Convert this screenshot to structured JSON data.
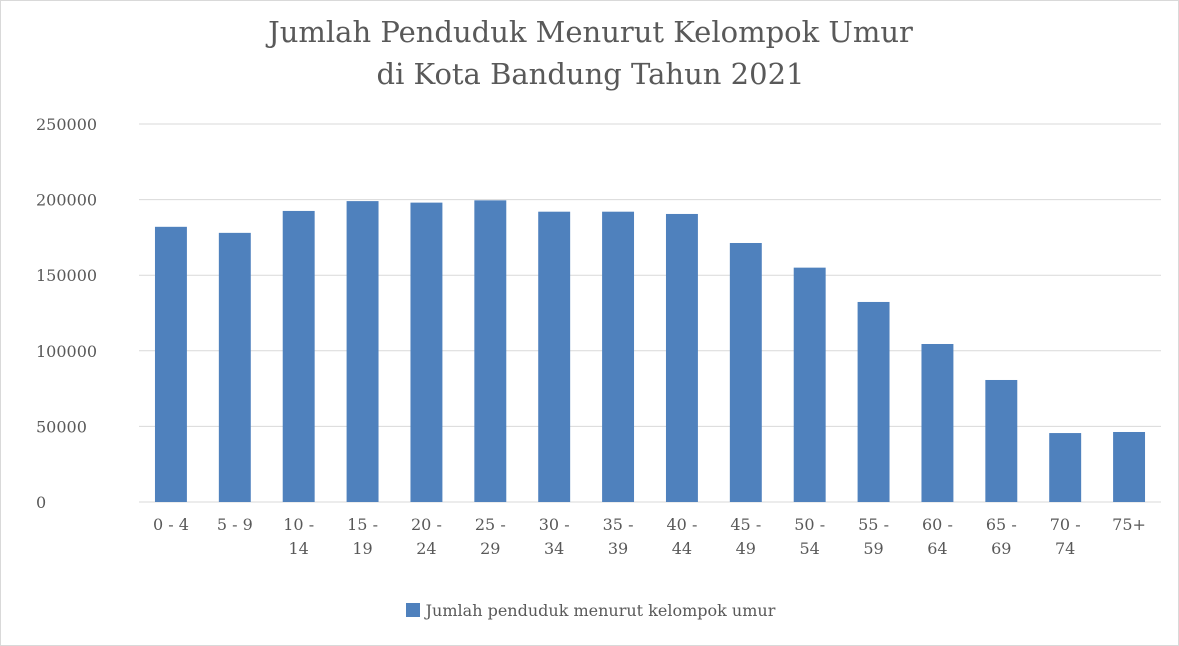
{
  "chart_data": {
    "type": "bar",
    "title": "Jumlah Penduduk Menurut Kelompok Umur",
    "subtitle": "di Kota Bandung Tahun 2021",
    "categories": [
      "0 - 4",
      "5 - 9",
      "10 - 14",
      "15 - 19",
      "20 - 24",
      "25 - 29",
      "30 - 34",
      "35 - 39",
      "40 - 44",
      "45 - 49",
      "50 - 54",
      "55 - 59",
      "60 - 64",
      "65 - 69",
      "70 - 74",
      "75+"
    ],
    "series": [
      {
        "name": "Jumlah penduduk menurut kelompok umur",
        "color": "#4f81bd",
        "values": [
          182000,
          178000,
          192500,
          199000,
          198000,
          199500,
          192000,
          192000,
          190500,
          171300,
          155000,
          132300,
          104500,
          80700,
          45600,
          46300
        ]
      }
    ],
    "ylim": [
      0,
      250000
    ],
    "yticks": [
      0,
      50000,
      100000,
      150000,
      200000,
      250000
    ],
    "grid": true,
    "legend": "bottom"
  }
}
